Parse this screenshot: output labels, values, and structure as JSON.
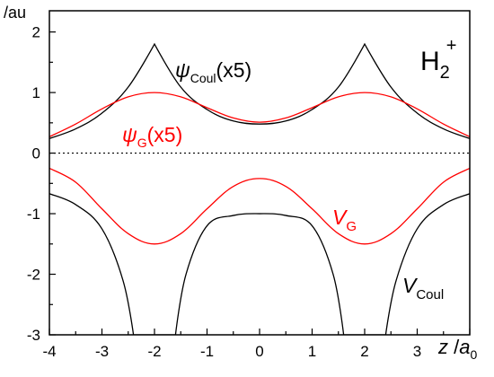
{
  "chart_data": {
    "type": "line",
    "ylabel": "/au",
    "xlabel": {
      "var": "z",
      "sep": " /",
      "unit": "a",
      "unit_sub": "0"
    },
    "molecule": {
      "base": "H",
      "sub": "2",
      "sup": "+"
    },
    "xlim": [
      -4,
      4
    ],
    "ylim": [
      -3,
      2.35
    ],
    "x_ticks": [
      -4,
      -3,
      -2,
      -1,
      0,
      1,
      2,
      3
    ],
    "y_ticks": [
      -3,
      -2,
      -1,
      0,
      1,
      2
    ],
    "colors": {
      "coulomb": "#000000",
      "gaussian": "#ff0000"
    },
    "curve_labels": {
      "psi_coul": {
        "sym": "ψ",
        "sub": "Coul",
        "suffix": "(x5)"
      },
      "psi_g": {
        "sym": "ψ",
        "sub": "G",
        "suffix": "(x5)"
      },
      "v_g": {
        "sym": "V",
        "sub": "G"
      },
      "v_coul": {
        "sym": "V",
        "sub": "Coul"
      }
    },
    "zero_line": {
      "y": 0,
      "style": "dotted"
    },
    "series": [
      {
        "x": [
          -4,
          -3.5,
          -3,
          -2.5,
          -2,
          -1.5,
          -1,
          -0.5,
          0,
          0.5,
          1,
          1.5,
          2,
          2.5,
          3,
          3.5,
          4
        ],
        "values": [
          0.24,
          0.4,
          0.66,
          1.09,
          1.8,
          1.09,
          0.72,
          0.53,
          0.48,
          0.53,
          0.72,
          1.09,
          1.8,
          1.09,
          0.66,
          0.4,
          0.24
        ]
      },
      {
        "x": [
          -4,
          -3.5,
          -3,
          -2.5,
          -2,
          -1.5,
          -1,
          -0.5,
          0,
          0.5,
          1,
          1.5,
          2,
          2.5,
          3,
          3.5,
          4
        ],
        "values": [
          0.27,
          0.48,
          0.73,
          0.93,
          1.0,
          0.93,
          0.75,
          0.58,
          0.51,
          0.58,
          0.75,
          0.93,
          1.0,
          0.93,
          0.73,
          0.48,
          0.27
        ]
      },
      {
        "x": [
          -4,
          -3.5,
          -3,
          -2.5,
          -2,
          -1.5,
          -1,
          -0.5,
          0,
          0.5,
          1,
          1.5,
          2,
          2.5,
          3,
          3.5,
          4
        ],
        "values": [
          -0.25,
          -0.48,
          -0.92,
          -1.33,
          -1.5,
          -1.33,
          -0.92,
          -0.55,
          -0.42,
          -0.55,
          -0.92,
          -1.33,
          -1.5,
          -1.33,
          -0.92,
          -0.48,
          -0.25
        ]
      },
      {
        "x": [
          -4,
          -3.5,
          -3,
          -2.6,
          -2.4,
          -1.6,
          -1.4,
          -1,
          -0.5,
          0,
          0.5,
          1,
          1.4,
          1.6,
          2.4,
          2.6,
          3,
          3.5,
          4
        ],
        "values": [
          -0.67,
          -0.85,
          -1.25,
          -2.1,
          -3.0,
          -3.0,
          -2.0,
          -1.2,
          -1.03,
          -1.0,
          -1.03,
          -1.2,
          -2.0,
          -3.0,
          -3.0,
          -2.1,
          -1.25,
          -0.85,
          -0.67
        ]
      }
    ]
  }
}
